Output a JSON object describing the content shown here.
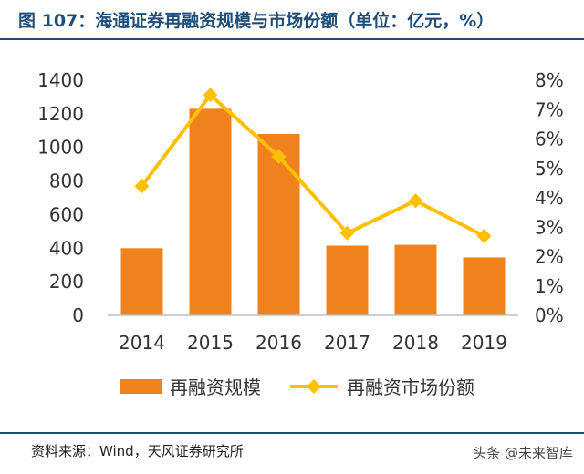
{
  "header": {
    "title": "图 107：海通证券再融资规模与市场份额（单位：亿元，%）"
  },
  "footer": {
    "source": "资料来源：Wind，天风证券研究所",
    "watermark": "头条 @未来智库"
  },
  "chart_data": {
    "type": "bar",
    "categories": [
      "2014",
      "2015",
      "2016",
      "2017",
      "2018",
      "2019"
    ],
    "series": [
      {
        "name": "再融资规模",
        "type": "bar",
        "axis": "left",
        "values": [
          400,
          1230,
          1080,
          415,
          420,
          345
        ],
        "color": "#f0821e"
      },
      {
        "name": "再融资市场份额",
        "type": "line",
        "axis": "right",
        "values": [
          4.4,
          7.5,
          5.4,
          2.8,
          3.9,
          2.7
        ],
        "color": "#ffc000"
      }
    ],
    "y_left": {
      "min": 0,
      "max": 1400,
      "step": 200,
      "ticks": [
        "0",
        "200",
        "400",
        "600",
        "800",
        "1000",
        "1200",
        "1400"
      ]
    },
    "y_right": {
      "min": 0,
      "max": 8,
      "step": 1,
      "ticks": [
        "0%",
        "1%",
        "2%",
        "3%",
        "4%",
        "5%",
        "6%",
        "7%",
        "8%"
      ]
    },
    "grid": false,
    "legend_position": "bottom"
  }
}
